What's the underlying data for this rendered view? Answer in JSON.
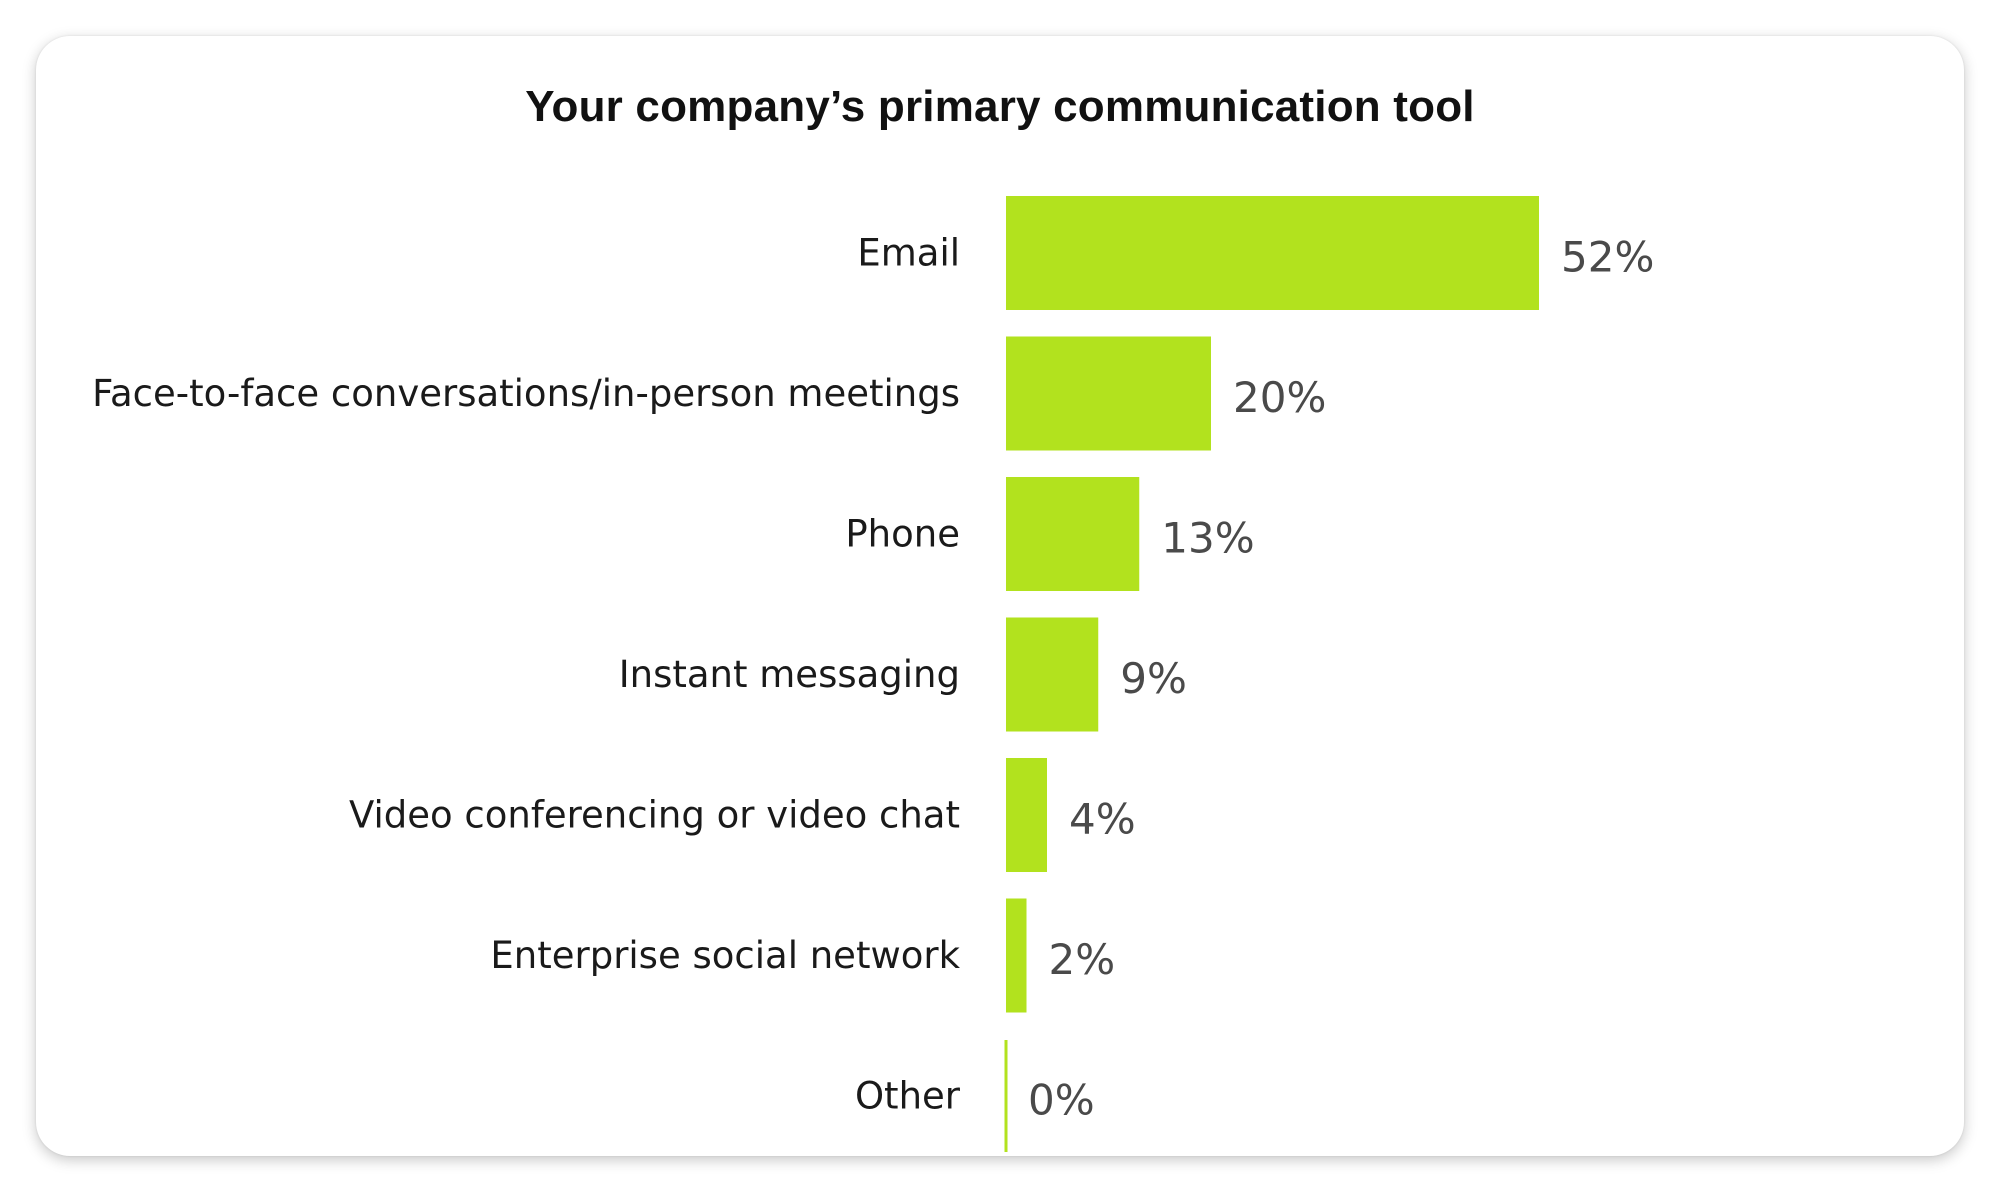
{
  "chart_data": {
    "type": "bar",
    "orientation": "horizontal",
    "title": "Your company’s primary communication tool",
    "categories": [
      "Email",
      "Face-to-face conversations/in-person meetings",
      "Phone",
      "Instant messaging",
      "Video conferencing or video chat",
      "Enterprise social network",
      "Other"
    ],
    "values": [
      52,
      20,
      13,
      9,
      4,
      2,
      0
    ],
    "value_labels": [
      "52%",
      "20%",
      "13%",
      "9%",
      "4%",
      "2%",
      "0%"
    ],
    "unit": "%",
    "xlabel": "",
    "ylabel": "",
    "grid": false,
    "legend": "none",
    "bar_color": "#b2e21e"
  }
}
